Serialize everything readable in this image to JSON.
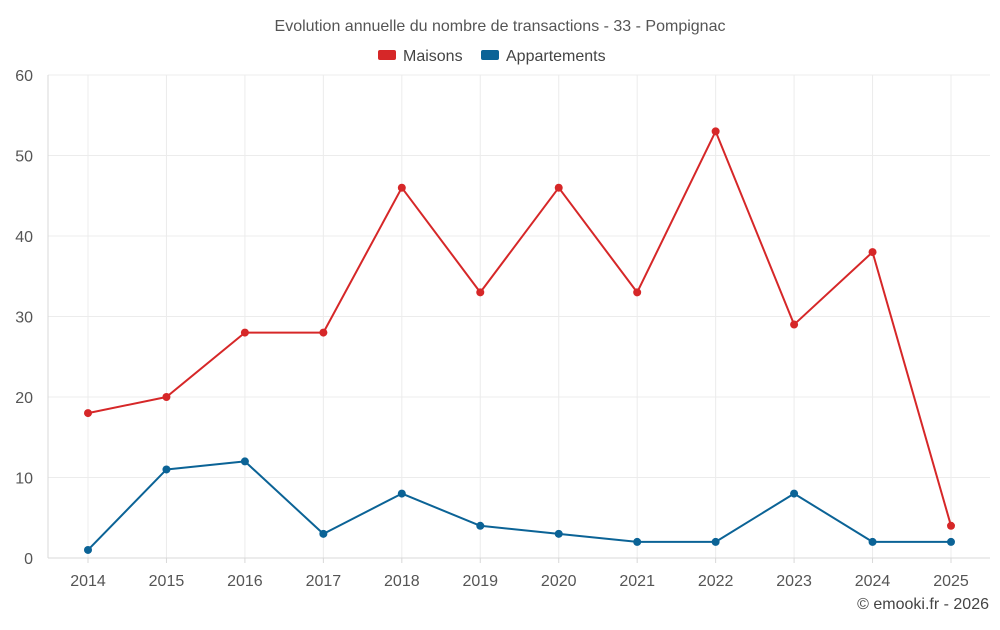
{
  "chart_data": {
    "type": "line",
    "title": "Evolution annuelle du nombre de transactions - 33 - Pompignac",
    "categories": [
      "2014",
      "2015",
      "2016",
      "2017",
      "2018",
      "2019",
      "2020",
      "2021",
      "2022",
      "2023",
      "2024",
      "2025"
    ],
    "series": [
      {
        "name": "Maisons",
        "color": "#d62728",
        "values": [
          18,
          20,
          28,
          28,
          46,
          33,
          46,
          33,
          53,
          29,
          38,
          4
        ]
      },
      {
        "name": "Appartements",
        "color": "#0b6396",
        "values": [
          1,
          11,
          12,
          3,
          8,
          4,
          3,
          2,
          2,
          8,
          2,
          2
        ]
      }
    ],
    "ylim": [
      0,
      60
    ],
    "yticks": [
      0,
      10,
      20,
      30,
      40,
      50,
      60
    ],
    "xlabel": "",
    "ylabel": "",
    "grid": true,
    "legend_position": "top-center"
  },
  "credit": "© emooki.fr - 2026"
}
